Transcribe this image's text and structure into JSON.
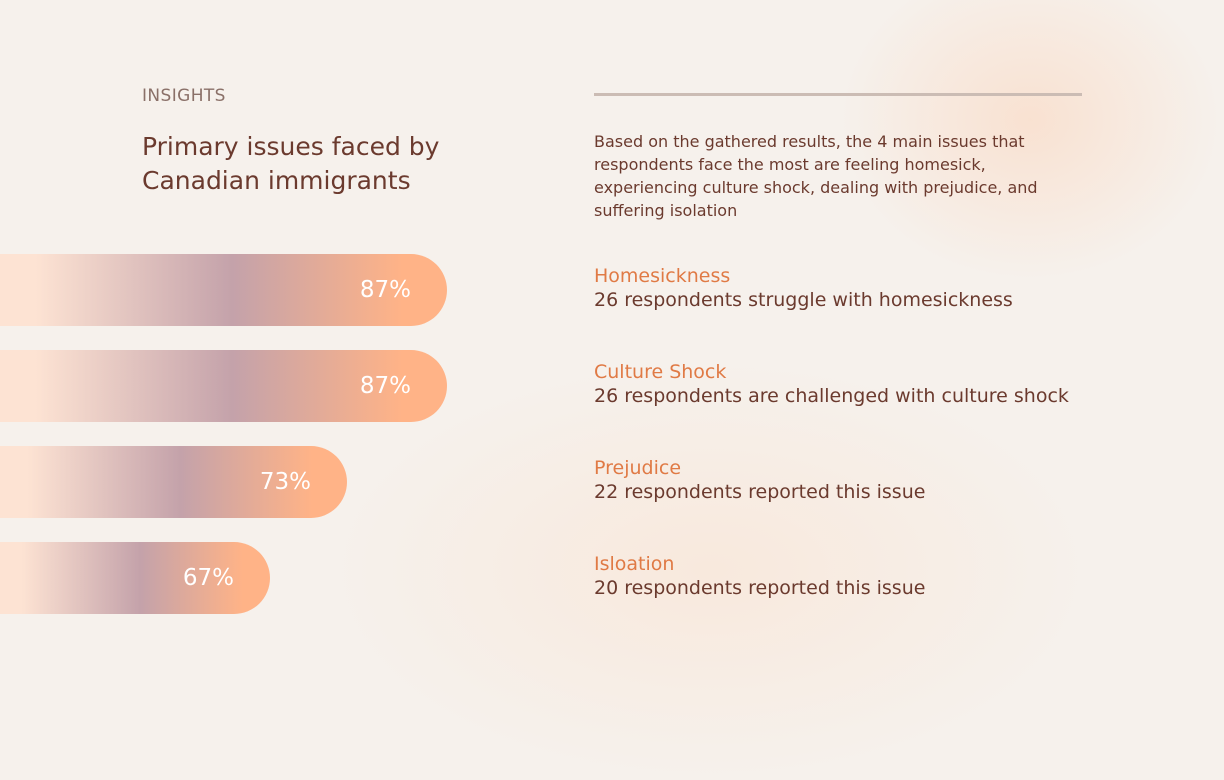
{
  "eyebrow": "INSIGHTS",
  "title": "Primary issues faced by Canadian immigrants",
  "summary": "Based on the gathered results, the 4 main issues that respondents face the most are feeling homesick, experiencing culture shock, dealing with prejudice, and suffering isolation",
  "colors": {
    "gradient_start": "#fde3d3",
    "gradient_mid": "#c4a2aa",
    "gradient_end": "#ffb387",
    "issue_name": "#e07a45",
    "text": "#6b3a2e"
  },
  "chart_data": {
    "type": "bar",
    "orientation": "horizontal",
    "categories": [
      "Homesickness",
      "Culture Shock",
      "Prejudice",
      "Isloation"
    ],
    "values": [
      87,
      87,
      73,
      67
    ],
    "value_labels": [
      "87%",
      "87%",
      "73%",
      "67%"
    ],
    "unit": "%",
    "descriptions": [
      "26 respondents struggle with homesickness",
      "26 respondents are challenged with culture shock",
      "22 respondents reported this issue",
      "20 respondents reported this issue"
    ],
    "grid": false,
    "legend": "none"
  }
}
